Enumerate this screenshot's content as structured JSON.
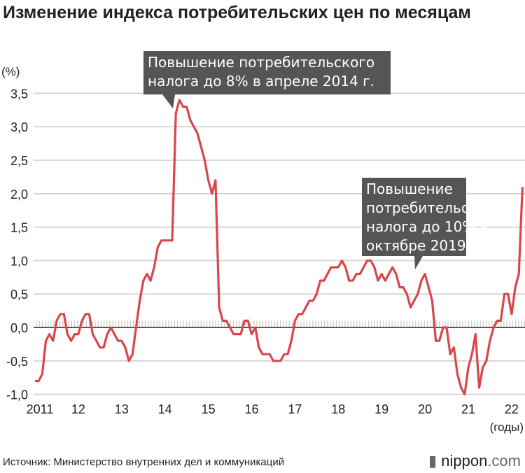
{
  "title": "Изменение индекса потребительских цен по месяцам",
  "source": "Источник: Министерство внутренних дел и коммуникаций",
  "logo": "nippon.com",
  "chart_data": {
    "type": "line",
    "title": "Изменение индекса потребительских цен по месяцам",
    "ylabel": "(%)",
    "xlabel": "(годы)",
    "ylim": [
      -1.0,
      3.5
    ],
    "yticks": [
      3.5,
      3.0,
      2.5,
      2.0,
      1.5,
      1.0,
      0.5,
      0.0,
      -0.5,
      -1.0
    ],
    "ytick_labels": [
      "3,5",
      "3,0",
      "2,5",
      "2,0",
      "1,5",
      "1,0",
      "0,5",
      "0,0",
      "-0,5",
      "-1,0"
    ],
    "xtick_labels": [
      "2011",
      "12",
      "13",
      "14",
      "15",
      "16",
      "17",
      "18",
      "19",
      "20",
      "21",
      "22"
    ],
    "grid": true,
    "line_color": "#d9464b",
    "start": "2011-01",
    "frequency": "monthly",
    "values": [
      -0.8,
      -0.8,
      -0.7,
      -0.2,
      -0.1,
      -0.2,
      0.1,
      0.2,
      0.2,
      -0.1,
      -0.2,
      -0.1,
      -0.1,
      0.1,
      0.2,
      0.2,
      -0.1,
      -0.2,
      -0.3,
      -0.3,
      -0.1,
      0.0,
      -0.1,
      -0.2,
      -0.2,
      -0.3,
      -0.5,
      -0.4,
      0.0,
      0.4,
      0.7,
      0.8,
      0.7,
      0.9,
      1.2,
      1.3,
      1.3,
      1.3,
      1.3,
      3.2,
      3.4,
      3.3,
      3.3,
      3.1,
      3.0,
      2.9,
      2.7,
      2.5,
      2.2,
      2.0,
      2.2,
      0.3,
      0.1,
      0.1,
      0.0,
      -0.1,
      -0.1,
      -0.1,
      0.1,
      0.1,
      -0.1,
      0.0,
      -0.3,
      -0.4,
      -0.4,
      -0.4,
      -0.5,
      -0.5,
      -0.5,
      -0.4,
      -0.4,
      -0.2,
      0.1,
      0.2,
      0.2,
      0.3,
      0.4,
      0.4,
      0.5,
      0.7,
      0.7,
      0.8,
      0.9,
      0.9,
      0.9,
      1.0,
      0.9,
      0.7,
      0.7,
      0.8,
      0.8,
      0.9,
      1.0,
      1.0,
      0.9,
      0.7,
      0.8,
      0.7,
      0.8,
      0.9,
      0.8,
      0.6,
      0.6,
      0.5,
      0.3,
      0.4,
      0.5,
      0.7,
      0.8,
      0.6,
      0.4,
      -0.2,
      -0.2,
      0.0,
      0.0,
      -0.4,
      -0.3,
      -0.7,
      -0.9,
      -1.0,
      -0.6,
      -0.4,
      -0.1,
      -0.9,
      -0.6,
      -0.5,
      -0.2,
      0.0,
      0.1,
      0.1,
      0.5,
      0.5,
      0.2,
      0.6,
      0.8,
      2.1
    ],
    "annotations": [
      {
        "text": [
          "Повышение потребительского",
          "налога до 8% в апреле 2014 г."
        ],
        "at": "2014-04"
      },
      {
        "text": [
          "Повышение",
          "потребительского",
          "налога до 10% в",
          "октябре 2019 г."
        ],
        "at": "2019-10"
      }
    ]
  }
}
